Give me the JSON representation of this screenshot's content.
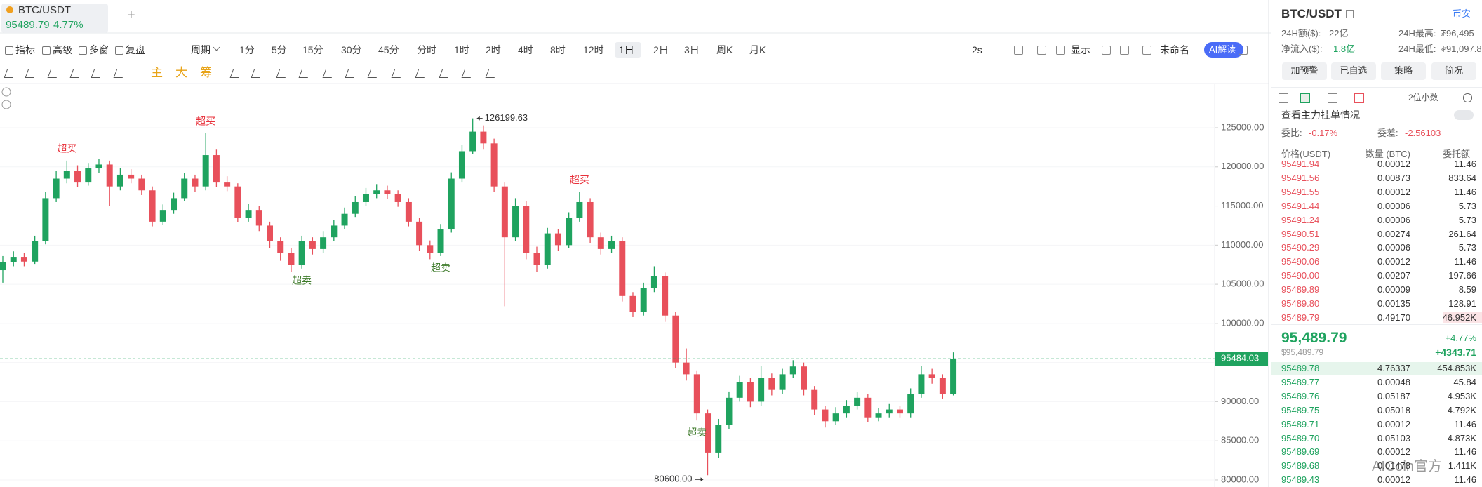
{
  "tab": {
    "symbol": "BTC/USDT",
    "price": "95489.79",
    "change": "4.77%"
  },
  "toolbar": {
    "left": [
      "指标",
      "高级",
      "多窗",
      "复盘"
    ],
    "period": "周期",
    "intervals": [
      {
        "label": "1分"
      },
      {
        "label": "5分"
      },
      {
        "label": "15分"
      },
      {
        "label": "30分"
      },
      {
        "label": "45分"
      },
      {
        "label": "分时"
      },
      {
        "label": "1时"
      },
      {
        "label": "2时"
      },
      {
        "label": "4时"
      },
      {
        "label": "8时"
      },
      {
        "label": "12时"
      },
      {
        "label": "1日",
        "active": true
      },
      {
        "label": "2日"
      },
      {
        "label": "3日"
      },
      {
        "label": "周K"
      },
      {
        "label": "月K"
      }
    ],
    "right": [
      "2s",
      "显示",
      "未命名",
      "AI解读"
    ],
    "indicators": [
      "主",
      "大",
      "筹"
    ]
  },
  "chart_data": {
    "type": "candlestick",
    "open": [
      106800,
      107800,
      108500,
      107900,
      110500,
      116000,
      118500,
      119500,
      118000,
      119800,
      120300,
      117500,
      119000,
      118500,
      117000,
      113000,
      114500,
      116000,
      118500,
      117500,
      121500,
      118000,
      117500,
      113500,
      114500,
      112500,
      110500,
      109000,
      107500,
      110500,
      109500,
      111000,
      112500,
      114000,
      115500,
      116500,
      117000,
      116500,
      115500,
      113000,
      110000,
      109000,
      112000,
      118500,
      122000,
      124500,
      123000,
      117500,
      111000,
      115000,
      109000,
      107500,
      111500,
      110000,
      113500,
      115500,
      111000,
      109500,
      110500,
      103500,
      101500,
      104500,
      106000,
      101000,
      95000,
      93500,
      88500,
      83500,
      87000,
      90500,
      92500,
      90000,
      93000,
      91500,
      93500,
      94500,
      91500,
      89000,
      87500,
      88500,
      89500,
      90500,
      88000,
      88500,
      89000,
      88500,
      91000,
      93500,
      93000,
      91000
    ],
    "high": [
      108600,
      109200,
      109000,
      111200,
      116800,
      119500,
      120800,
      120200,
      120500,
      121000,
      120800,
      119800,
      119700,
      119000,
      117500,
      115200,
      116700,
      119200,
      119000,
      124300,
      122200,
      118800,
      117900,
      115300,
      115000,
      113000,
      111000,
      109600,
      111200,
      111000,
      111800,
      113200,
      114800,
      116300,
      117300,
      117800,
      117600,
      117000,
      116000,
      113500,
      110600,
      112700,
      119300,
      122800,
      126199.63,
      125300,
      123600,
      118000,
      116000,
      115600,
      109800,
      112200,
      112000,
      114200,
      116800,
      116000,
      111600,
      111200,
      111000,
      104000,
      105200,
      107300,
      106500,
      101500,
      96800,
      94000,
      89000,
      87800,
      91300,
      93300,
      93000,
      94600,
      93600,
      94200,
      95300,
      95000,
      92000,
      89500,
      89300,
      90200,
      91200,
      91000,
      89200,
      89700,
      89500,
      91700,
      94600,
      94200,
      93500,
      96300
    ],
    "low": [
      105200,
      107300,
      107300,
      107600,
      110100,
      115500,
      117900,
      117400,
      117600,
      119200,
      115000,
      117000,
      117900,
      116400,
      112400,
      112600,
      114000,
      115600,
      116800,
      117000,
      117400,
      116900,
      112900,
      113000,
      111800,
      109600,
      108000,
      106600,
      107000,
      108800,
      109000,
      110500,
      112000,
      113600,
      115000,
      116000,
      115900,
      114900,
      112400,
      109300,
      108200,
      108600,
      111600,
      118000,
      121600,
      122200,
      116800,
      102200,
      110500,
      108200,
      106600,
      107000,
      109300,
      109600,
      113000,
      110300,
      108800,
      109000,
      102800,
      100800,
      101000,
      104000,
      100200,
      94300,
      92700,
      87600,
      80600,
      82800,
      86500,
      90000,
      89300,
      89500,
      90800,
      91000,
      93000,
      90800,
      88300,
      86700,
      87000,
      88000,
      89000,
      87400,
      87500,
      88000,
      88000,
      88000,
      90500,
      92300,
      90400,
      90800
    ],
    "close": [
      107800,
      108500,
      107900,
      110500,
      116000,
      118500,
      119500,
      118000,
      119800,
      120300,
      117500,
      119000,
      118500,
      117000,
      113000,
      114500,
      116000,
      118500,
      117500,
      121500,
      118000,
      117500,
      113500,
      114500,
      112500,
      110500,
      109000,
      107500,
      110500,
      109500,
      111000,
      112500,
      114000,
      115500,
      116500,
      117000,
      116500,
      115500,
      113000,
      110000,
      109000,
      112000,
      118500,
      122000,
      124500,
      123000,
      117500,
      111000,
      115000,
      109000,
      107500,
      111500,
      110000,
      113500,
      115500,
      111000,
      109500,
      110500,
      103500,
      101500,
      104500,
      106000,
      101000,
      95000,
      93500,
      88500,
      83500,
      87000,
      90500,
      92500,
      90000,
      93000,
      91500,
      93500,
      94500,
      91500,
      89000,
      87500,
      88500,
      89500,
      90500,
      88000,
      88500,
      89000,
      88500,
      91000,
      93500,
      93000,
      91000,
      95489.79
    ],
    "up_color": "#1fa35f",
    "down_color": "#e8505b",
    "ylim": [
      79100,
      130470
    ],
    "yticks": [
      {
        "value": 80000,
        "label": "80000.00"
      },
      {
        "value": 85000,
        "label": "85000.00"
      },
      {
        "value": 90000,
        "label": "90000.00"
      },
      {
        "value": 95000,
        "label": "95000.00"
      },
      {
        "value": 100000,
        "label": "100000.00"
      },
      {
        "value": 105000,
        "label": "105000.00"
      },
      {
        "value": 110000,
        "label": "110000.00"
      },
      {
        "value": 115000,
        "label": "115000.00"
      },
      {
        "value": 120000,
        "label": "120000.00"
      },
      {
        "value": 125000,
        "label": "125000.00"
      }
    ],
    "grid": true,
    "last_price": 95484.03,
    "low_label": "80600.00",
    "signals": [
      {
        "text": "超买",
        "color": "#e8313b"
      },
      {
        "text": "超买",
        "color": "#e8313b"
      },
      {
        "text": "超买",
        "color": "#e8313b"
      },
      {
        "text": "超卖",
        "color": "#3d7a2a"
      },
      {
        "text": "超卖",
        "color": "#3d7a2a"
      },
      {
        "text": "超卖",
        "color": "#3d7a2a"
      }
    ],
    "watermark": "AICoin官方"
  },
  "panel": {
    "symbol": "BTC/USDT",
    "exchange": "币安",
    "stats": [
      {
        "label": "24H额($):",
        "value": "22亿"
      },
      {
        "label": "24H最高:",
        "value": "₮96,495"
      },
      {
        "label": "净流入($):",
        "value": "1.8亿"
      },
      {
        "label": "24H最低:",
        "value": "₮91,097.8"
      }
    ],
    "buttons": [
      "加预警",
      "已自选",
      "策略",
      "简况"
    ],
    "decimals": "2位小数",
    "depth_link": "查看主力挂单情况",
    "ratio": {
      "label": "委比:",
      "value": "-0.17%"
    },
    "diff": {
      "label": "委差:",
      "value": "-2.56103"
    },
    "headers": [
      "价格(USDT)",
      "数量 (BTC)",
      "委托额"
    ],
    "asks": [
      [
        "95491.94",
        "0.00012",
        "11.46"
      ],
      [
        "95491.56",
        "0.00873",
        "833.64"
      ],
      [
        "95491.55",
        "0.00012",
        "11.46"
      ],
      [
        "95491.44",
        "0.00006",
        "5.73"
      ],
      [
        "95491.24",
        "0.00006",
        "5.73"
      ],
      [
        "95490.51",
        "0.00274",
        "261.64"
      ],
      [
        "95490.29",
        "0.00006",
        "5.73"
      ],
      [
        "95490.06",
        "0.00012",
        "11.46"
      ],
      [
        "95490.00",
        "0.00207",
        "197.66"
      ],
      [
        "95489.89",
        "0.00009",
        "8.59"
      ],
      [
        "95489.80",
        "0.00135",
        "128.91"
      ],
      [
        "95489.79",
        "0.49170",
        "46.952K"
      ]
    ],
    "last": {
      "price": "95,489.79",
      "usd": "$95,489.79",
      "change_pct": "+4.77%",
      "change": "+4343.71"
    },
    "bids": [
      [
        "95489.78",
        "4.76337",
        "454.853K"
      ],
      [
        "95489.77",
        "0.00048",
        "45.84"
      ],
      [
        "95489.76",
        "0.05187",
        "4.953K"
      ],
      [
        "95489.75",
        "0.05018",
        "4.792K"
      ],
      [
        "95489.71",
        "0.00012",
        "11.46"
      ],
      [
        "95489.70",
        "0.05103",
        "4.873K"
      ],
      [
        "95489.69",
        "0.00012",
        "11.46"
      ],
      [
        "95489.68",
        "0.01478",
        "1.411K"
      ],
      [
        "95489.43",
        "0.00012",
        "11.46"
      ]
    ]
  }
}
